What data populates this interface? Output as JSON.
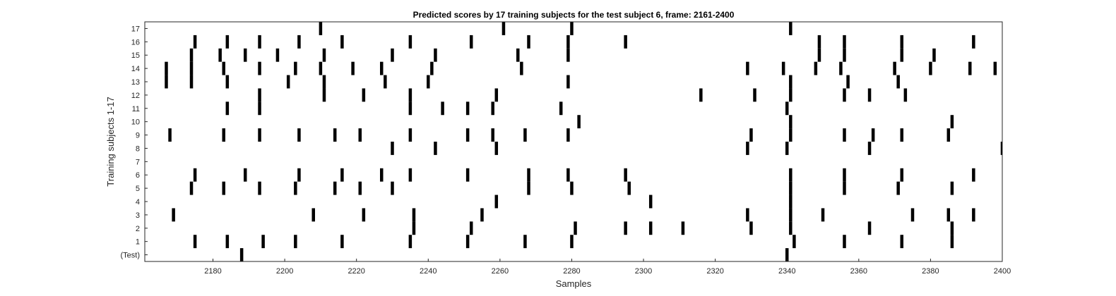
{
  "chart_data": {
    "type": "event-raster",
    "title": "Predicted scores by 17 training subjects for the test subject 6, frame: 2161-2400",
    "xlabel": "Samples",
    "ylabel": "Training subjects 1-17",
    "xlim": [
      2161,
      2400
    ],
    "xticks": [
      2180,
      2200,
      2220,
      2240,
      2260,
      2280,
      2300,
      2320,
      2340,
      2360,
      2380,
      2400
    ],
    "ytick_labels": [
      "(Test)",
      "1",
      "2",
      "3",
      "4",
      "5",
      "6",
      "7",
      "8",
      "9",
      "10",
      "11",
      "12",
      "13",
      "14",
      "15",
      "16",
      "17"
    ],
    "grid": false,
    "mark_color": "#000000",
    "rows": [
      {
        "label": "(Test)",
        "events": [
          2188,
          2340
        ]
      },
      {
        "label": "1",
        "events": [
          2175,
          2184,
          2194,
          2203,
          2216,
          2235,
          2251,
          2267,
          2280,
          2342,
          2356,
          2372,
          2386
        ]
      },
      {
        "label": "2",
        "events": [
          2236,
          2252,
          2281,
          2295,
          2302,
          2311,
          2330,
          2341,
          2363,
          2386
        ]
      },
      {
        "label": "3",
        "events": [
          2169,
          2208,
          2222,
          2236,
          2255,
          2329,
          2341,
          2350,
          2375,
          2385,
          2392
        ]
      },
      {
        "label": "4",
        "events": [
          2259,
          2302,
          2341
        ]
      },
      {
        "label": "5",
        "events": [
          2174,
          2183,
          2193,
          2203,
          2214,
          2221,
          2230,
          2268,
          2280,
          2296,
          2341,
          2356,
          2371,
          2386
        ]
      },
      {
        "label": "6",
        "events": [
          2175,
          2189,
          2204,
          2216,
          2227,
          2235,
          2251,
          2268,
          2279,
          2295,
          2341,
          2356,
          2372,
          2392
        ]
      },
      {
        "label": "7",
        "events": []
      },
      {
        "label": "8",
        "events": [
          2230,
          2242,
          2259,
          2329,
          2340,
          2363,
          2400
        ]
      },
      {
        "label": "9",
        "events": [
          2168,
          2183,
          2193,
          2204,
          2214,
          2221,
          2235,
          2251,
          2258,
          2267,
          2279,
          2330,
          2341,
          2356,
          2364,
          2372,
          2385
        ]
      },
      {
        "label": "10",
        "events": [
          2282,
          2341,
          2386
        ]
      },
      {
        "label": "11",
        "events": [
          2184,
          2193,
          2235,
          2244,
          2251,
          2258,
          2277,
          2340
        ]
      },
      {
        "label": "12",
        "events": [
          2193,
          2211,
          2222,
          2235,
          2259,
          2316,
          2331,
          2341,
          2356,
          2363,
          2373
        ]
      },
      {
        "label": "13",
        "events": [
          2167,
          2174,
          2184,
          2201,
          2211,
          2228,
          2240,
          2279,
          2341,
          2357,
          2371
        ]
      },
      {
        "label": "14",
        "events": [
          2167,
          2174,
          2183,
          2193,
          2203,
          2210,
          2219,
          2227,
          2241,
          2266,
          2329,
          2339,
          2348,
          2355,
          2370,
          2380,
          2391,
          2398
        ]
      },
      {
        "label": "15",
        "events": [
          2174,
          2182,
          2189,
          2198,
          2211,
          2230,
          2242,
          2265,
          2279,
          2349,
          2356,
          2372,
          2381
        ]
      },
      {
        "label": "16",
        "events": [
          2175,
          2184,
          2193,
          2204,
          2216,
          2235,
          2252,
          2268,
          2279,
          2295,
          2349,
          2356,
          2372,
          2392
        ]
      },
      {
        "label": "17",
        "events": [
          2210,
          2261,
          2280,
          2341
        ]
      }
    ]
  }
}
